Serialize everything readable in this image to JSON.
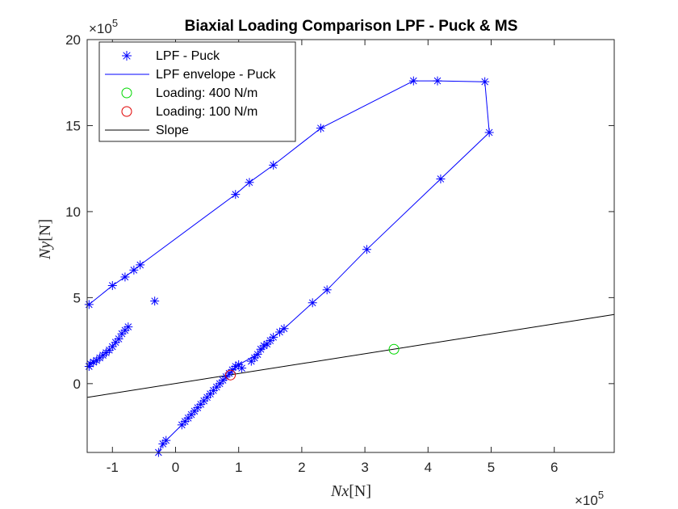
{
  "chart_data": {
    "type": "scatter",
    "title": "Biaxial Loading Comparison LPF - Puck & MS",
    "xlabel_var": "Nx",
    "xlabel_unit": "[N]",
    "ylabel_var": "Ny",
    "ylabel_unit": "[N]",
    "x_exponent_base": "×10",
    "x_exponent_power": "5",
    "y_exponent_base": "×10",
    "y_exponent_power": "5",
    "xlim": [
      -1.4,
      6.95
    ],
    "ylim": [
      -4,
      20
    ],
    "xticks": [
      -1,
      0,
      1,
      2,
      3,
      4,
      5,
      6
    ],
    "xtick_labels": [
      "-1",
      "0",
      "1",
      "2",
      "3",
      "4",
      "5",
      "6"
    ],
    "yticks": [
      0,
      5,
      10,
      15,
      20
    ],
    "ytick_labels": [
      "0",
      "5",
      "10",
      "15",
      "20"
    ],
    "grid": false,
    "legend_position": "top-left",
    "colors": {
      "puck": "#0000ff",
      "load400": "#00d800",
      "load100": "#e00000",
      "slope": "#000000"
    },
    "series": [
      {
        "name": "LPF - Puck",
        "marker": "asterisk",
        "points": [
          [
            -1.37,
            4.6
          ],
          [
            -1.37,
            1.0
          ],
          [
            -1.35,
            1.15
          ],
          [
            -1.3,
            1.25
          ],
          [
            -1.25,
            1.35
          ],
          [
            -1.2,
            1.5
          ],
          [
            -1.15,
            1.65
          ],
          [
            -1.1,
            1.8
          ],
          [
            -1.05,
            1.95
          ],
          [
            -1.0,
            2.15
          ],
          [
            -0.95,
            2.4
          ],
          [
            -0.9,
            2.6
          ],
          [
            -0.85,
            2.9
          ],
          [
            -0.8,
            3.1
          ],
          [
            -0.75,
            3.3
          ],
          [
            -1.0,
            5.7
          ],
          [
            -0.8,
            6.2
          ],
          [
            -0.66,
            6.6
          ],
          [
            -0.56,
            6.9
          ],
          [
            -0.33,
            4.8
          ],
          [
            -0.27,
            -4.0
          ],
          [
            -0.2,
            -3.5
          ],
          [
            -0.15,
            -3.3
          ],
          [
            0.1,
            -2.4
          ],
          [
            0.15,
            -2.2
          ],
          [
            0.2,
            -2.0
          ],
          [
            0.25,
            -1.8
          ],
          [
            0.3,
            -1.6
          ],
          [
            0.35,
            -1.4
          ],
          [
            0.4,
            -1.2
          ],
          [
            0.45,
            -1.0
          ],
          [
            0.5,
            -0.8
          ],
          [
            0.55,
            -0.6
          ],
          [
            0.6,
            -0.4
          ],
          [
            0.65,
            -0.2
          ],
          [
            0.7,
            0.0
          ],
          [
            0.75,
            0.2
          ],
          [
            0.8,
            0.4
          ],
          [
            0.85,
            0.6
          ],
          [
            0.9,
            0.8
          ],
          [
            0.95,
            1.0
          ],
          [
            1.0,
            1.1
          ],
          [
            1.05,
            0.9
          ],
          [
            1.2,
            1.3
          ],
          [
            1.25,
            1.5
          ],
          [
            1.3,
            1.7
          ],
          [
            1.35,
            2.0
          ],
          [
            1.4,
            2.2
          ],
          [
            1.45,
            2.3
          ],
          [
            1.5,
            2.5
          ],
          [
            1.55,
            2.7
          ],
          [
            1.65,
            3.0
          ],
          [
            1.72,
            3.2
          ],
          [
            0.95,
            11.0
          ],
          [
            1.17,
            11.7
          ],
          [
            1.55,
            12.7
          ],
          [
            2.3,
            14.85
          ],
          [
            3.77,
            17.6
          ],
          [
            4.15,
            17.6
          ],
          [
            4.9,
            17.55
          ],
          [
            4.97,
            14.6
          ],
          [
            4.2,
            11.9
          ],
          [
            3.03,
            7.8
          ],
          [
            2.4,
            5.45
          ],
          [
            2.17,
            4.7
          ]
        ]
      },
      {
        "name": "LPF envelope - Puck",
        "marker": "line",
        "points": [
          [
            -1.37,
            4.6
          ],
          [
            -1.0,
            5.7
          ],
          [
            -0.8,
            6.2
          ],
          [
            -0.66,
            6.6
          ],
          [
            -0.56,
            6.9
          ],
          [
            0.95,
            11.0
          ],
          [
            1.17,
            11.7
          ],
          [
            1.55,
            12.7
          ],
          [
            2.3,
            14.85
          ],
          [
            3.77,
            17.6
          ],
          [
            4.15,
            17.6
          ],
          [
            4.9,
            17.55
          ],
          [
            4.97,
            14.6
          ],
          [
            4.2,
            11.9
          ],
          [
            3.03,
            7.8
          ],
          [
            2.4,
            5.45
          ],
          [
            2.17,
            4.7
          ],
          [
            1.72,
            3.2
          ],
          [
            1.55,
            2.7
          ],
          [
            1.3,
            1.7
          ],
          [
            1.0,
            1.1
          ],
          [
            0.6,
            -0.4
          ],
          [
            0.1,
            -2.4
          ],
          [
            -0.15,
            -3.3
          ],
          [
            -0.2,
            -3.5
          ],
          [
            -0.27,
            -4.0
          ]
        ]
      },
      {
        "name": "Loading: 400 N/m",
        "marker": "circle",
        "points": [
          [
            3.46,
            2.0
          ]
        ]
      },
      {
        "name": "Loading: 100 N/m",
        "marker": "circle",
        "points": [
          [
            0.87,
            0.5
          ]
        ]
      },
      {
        "name": "Slope",
        "marker": "line",
        "points": [
          [
            -1.4,
            -0.8
          ],
          [
            6.95,
            4.02
          ]
        ]
      }
    ]
  }
}
